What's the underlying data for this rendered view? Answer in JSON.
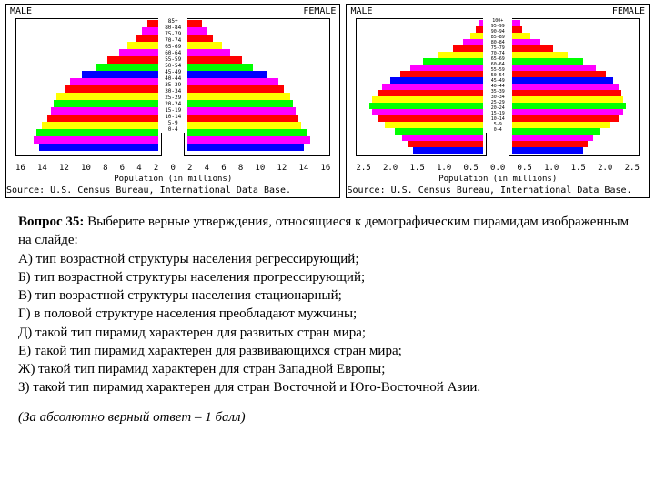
{
  "chart1": {
    "male_label": "MALE",
    "female_label": "FEMALE",
    "xlabel": "Population (in millions)",
    "source": "Source: U.S. Census Bureau, International Data Base.",
    "xticks": [
      "16",
      "14",
      "12",
      "10",
      "8",
      "6",
      "4",
      "2",
      "0",
      "2",
      "4",
      "6",
      "8",
      "10",
      "12",
      "14",
      "16"
    ],
    "age_labels": [
      "85+",
      "80-84",
      "75-79",
      "70-74",
      "65-69",
      "60-64",
      "55-59",
      "50-54",
      "45-49",
      "40-44",
      "35-39",
      "30-34",
      "25-29",
      "20-24",
      "15-19",
      "10-14",
      "5-9",
      "0-4"
    ],
    "colors": [
      "#ff0000",
      "#ff00ff",
      "#ff0000",
      "#ffff00",
      "#ff00ff",
      "#ff0000",
      "#00ff00",
      "#0000ff",
      "#ff00ff",
      "#ff0000",
      "#ffff00",
      "#00ff00",
      "#ff00ff",
      "#ff0000",
      "#ffff00",
      "#00ff00",
      "#ff00ff",
      "#0000ff"
    ],
    "male_widths": [
      8,
      12,
      16,
      22,
      28,
      36,
      44,
      54,
      62,
      66,
      72,
      74,
      76,
      78,
      82,
      86,
      88,
      84
    ],
    "female_widths": [
      10,
      14,
      18,
      24,
      30,
      38,
      46,
      56,
      64,
      68,
      72,
      74,
      76,
      78,
      80,
      84,
      86,
      82
    ]
  },
  "chart2": {
    "male_label": "MALE",
    "female_label": "FEMALE",
    "xlabel": "Population (in millions)",
    "source": "Source: U.S. Census Bureau, International Data Base.",
    "xticks": [
      "2.5",
      "2.0",
      "1.5",
      "1.0",
      "0.5",
      "0.0",
      "0.5",
      "1.0",
      "1.5",
      "2.0",
      "2.5"
    ],
    "age_labels": [
      "100+",
      "95-99",
      "90-94",
      "85-89",
      "80-84",
      "75-79",
      "70-74",
      "65-69",
      "60-64",
      "55-59",
      "50-54",
      "45-49",
      "40-44",
      "35-39",
      "30-34",
      "25-29",
      "20-24",
      "15-19",
      "10-14",
      "5-9",
      "0-4"
    ],
    "colors": [
      "#ff00ff",
      "#ff0000",
      "#ffff00",
      "#ff00ff",
      "#ff0000",
      "#ffff00",
      "#00ff00",
      "#ff00ff",
      "#ff0000",
      "#0000ff",
      "#ff00ff",
      "#ff0000",
      "#ffff00",
      "#00ff00",
      "#ff00ff",
      "#ff0000",
      "#ffff00",
      "#00ff00",
      "#ff00ff",
      "#ff0000",
      "#0000ff"
    ],
    "male_widths": [
      4,
      6,
      10,
      16,
      24,
      36,
      48,
      58,
      66,
      74,
      80,
      84,
      88,
      90,
      88,
      84,
      78,
      70,
      64,
      60,
      56
    ],
    "female_widths": [
      6,
      8,
      14,
      22,
      32,
      44,
      56,
      66,
      74,
      80,
      84,
      86,
      88,
      90,
      88,
      84,
      78,
      70,
      64,
      60,
      56
    ]
  },
  "question": {
    "prefix": "Вопрос 35:",
    "text": " Выберите верные утверждения, относящиеся к демографическим пирамидам изображенным на слайде:",
    "options": [
      "А) тип возрастной структуры населения регрессирующий;",
      "Б) тип возрастной структуры населения прогрессирующий;",
      "В) тип возрастной структуры населения стационарный;",
      "Г) в половой структуре населения преобладают мужчины;",
      "Д) такой тип пирамид характерен для развитых стран мира;",
      "Е) такой тип пирамид характерен для развивающихся стран мира;",
      "Ж) такой тип пирамид характерен для стран Западной Европы;",
      "З) такой тип пирамид характерен для стран Восточной и Юго-Восточной Азии."
    ]
  },
  "footer": "(За абсолютно верный ответ – 1 балл)"
}
